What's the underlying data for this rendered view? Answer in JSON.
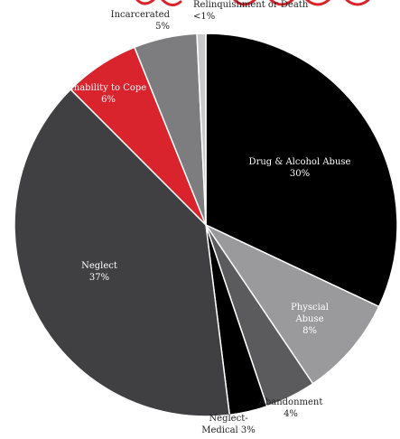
{
  "chart_data": {
    "type": "pie",
    "title": "",
    "slices": [
      {
        "label": "Drug & Alcohol Abuse",
        "value": 30,
        "value_label": "30%",
        "color": "#000000"
      },
      {
        "label": "Physcial Abuse",
        "value": 8,
        "value_label": "8%",
        "color": "#9a9a9d"
      },
      {
        "label": "Abandonment",
        "value": 4,
        "value_label": "4%",
        "color": "#5b5b5e"
      },
      {
        "label": "Neglect- Medical",
        "value": 3,
        "value_label": "3%",
        "color": "#000000"
      },
      {
        "label": "Neglect",
        "value": 37,
        "value_label": "37%",
        "color": "#404043"
      },
      {
        "label": "Inability to Cope",
        "value": 6,
        "value_label": "6%",
        "color": "#d9232d"
      },
      {
        "label": "Incarcerated",
        "value": 5,
        "value_label": "5%",
        "color": "#7d7d80"
      },
      {
        "label": "Relinquishment or Death",
        "value": 0.7,
        "value_label": "<1%",
        "color": "#c9c9cb"
      }
    ]
  }
}
